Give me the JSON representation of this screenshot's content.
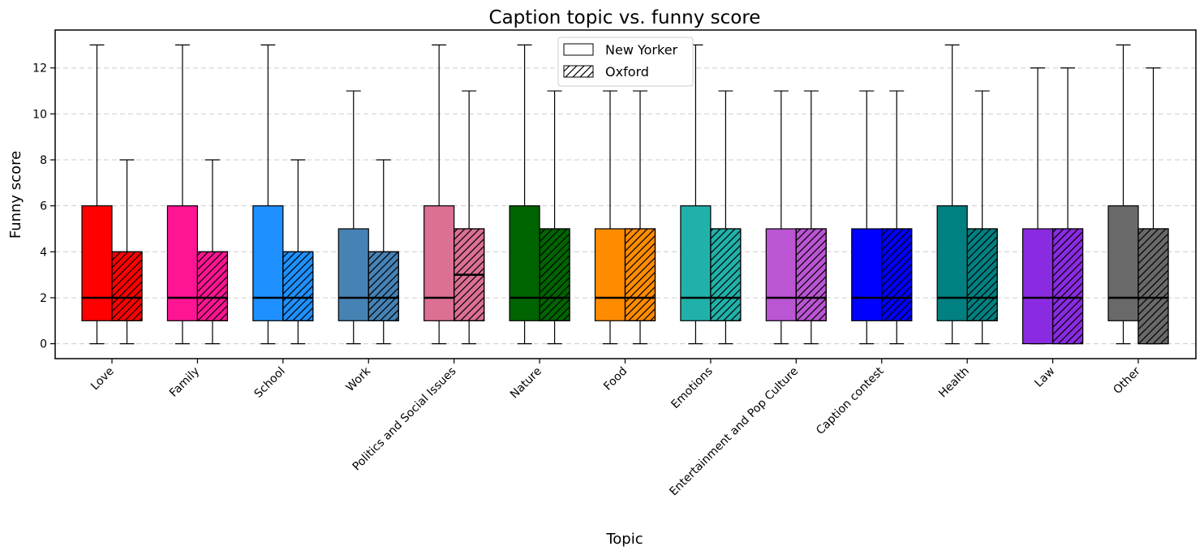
{
  "chart_data": {
    "type": "box",
    "title": "Caption topic vs. funny score",
    "xlabel": "Topic",
    "ylabel": "Funny score",
    "ylim": [
      -0.65,
      13.65
    ],
    "yticks": [
      0,
      2,
      4,
      6,
      8,
      10,
      12
    ],
    "grid": "y-dashed",
    "legend_placement": "top-center",
    "categories": [
      "Love",
      "Family",
      "School",
      "Work",
      "Politics and Social Issues",
      "Nature",
      "Food",
      "Emotions",
      "Entertainment and Pop Culture",
      "Caption contest",
      "Health",
      "Law",
      "Other"
    ],
    "colors": [
      "#ff0000",
      "#ff1493",
      "#1e90ff",
      "#4682b4",
      "#db7093",
      "#006400",
      "#ff8c00",
      "#20b2aa",
      "#ba55d3",
      "#0000ff",
      "#008080",
      "#8a2be2",
      "#696969"
    ],
    "series": [
      {
        "name": "New Yorker",
        "hatch": "none",
        "boxes": [
          {
            "min": 0,
            "q1": 1,
            "median": 2,
            "q3": 6,
            "max": 13
          },
          {
            "min": 0,
            "q1": 1,
            "median": 2,
            "q3": 6,
            "max": 13
          },
          {
            "min": 0,
            "q1": 1,
            "median": 2,
            "q3": 6,
            "max": 13
          },
          {
            "min": 0,
            "q1": 1,
            "median": 2,
            "q3": 5,
            "max": 11
          },
          {
            "min": 0,
            "q1": 1,
            "median": 2,
            "q3": 6,
            "max": 13
          },
          {
            "min": 0,
            "q1": 1,
            "median": 2,
            "q3": 6,
            "max": 13
          },
          {
            "min": 0,
            "q1": 1,
            "median": 2,
            "q3": 5,
            "max": 11
          },
          {
            "min": 0,
            "q1": 1,
            "median": 2,
            "q3": 6,
            "max": 13
          },
          {
            "min": 0,
            "q1": 1,
            "median": 2,
            "q3": 5,
            "max": 11
          },
          {
            "min": 0,
            "q1": 1,
            "median": 2,
            "q3": 5,
            "max": 11
          },
          {
            "min": 0,
            "q1": 1,
            "median": 2,
            "q3": 6,
            "max": 13
          },
          {
            "min": 0,
            "q1": 0,
            "median": 2,
            "q3": 5,
            "max": 12
          },
          {
            "min": 0,
            "q1": 1,
            "median": 2,
            "q3": 6,
            "max": 13
          }
        ]
      },
      {
        "name": "Oxford",
        "hatch": "diagonal",
        "boxes": [
          {
            "min": 0,
            "q1": 1,
            "median": 2,
            "q3": 4,
            "max": 8
          },
          {
            "min": 0,
            "q1": 1,
            "median": 2,
            "q3": 4,
            "max": 8
          },
          {
            "min": 0,
            "q1": 1,
            "median": 2,
            "q3": 4,
            "max": 8
          },
          {
            "min": 0,
            "q1": 1,
            "median": 2,
            "q3": 4,
            "max": 8
          },
          {
            "min": 0,
            "q1": 1,
            "median": 3,
            "q3": 5,
            "max": 11
          },
          {
            "min": 0,
            "q1": 1,
            "median": 2,
            "q3": 5,
            "max": 11
          },
          {
            "min": 0,
            "q1": 1,
            "median": 2,
            "q3": 5,
            "max": 11
          },
          {
            "min": 0,
            "q1": 1,
            "median": 2,
            "q3": 5,
            "max": 11
          },
          {
            "min": 0,
            "q1": 1,
            "median": 2,
            "q3": 5,
            "max": 11
          },
          {
            "min": 0,
            "q1": 1,
            "median": 2,
            "q3": 5,
            "max": 11
          },
          {
            "min": 0,
            "q1": 1,
            "median": 2,
            "q3": 5,
            "max": 11
          },
          {
            "min": 0,
            "q1": 0,
            "median": 2,
            "q3": 5,
            "max": 12
          },
          {
            "min": 0,
            "q1": 0,
            "median": 2,
            "q3": 5,
            "max": 12
          }
        ]
      }
    ]
  }
}
